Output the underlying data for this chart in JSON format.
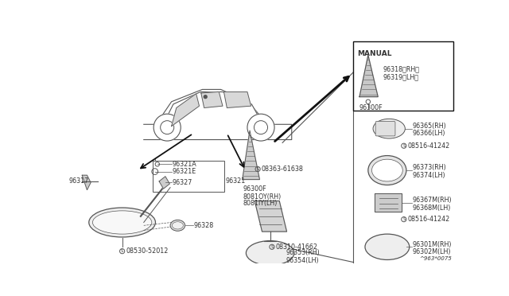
{
  "bg_color": "#ffffff",
  "diagram_ref": "^963*0075",
  "text_color": "#333333",
  "line_color": "#555555",
  "box_color": "#111111",
  "font_size": 6.5,
  "small_font_size": 5.8,
  "manual_box": {
    "label": "MANUAL",
    "part1": "96318〈RH〉",
    "part2": "96319〈LH〉",
    "part3": "96300F"
  }
}
